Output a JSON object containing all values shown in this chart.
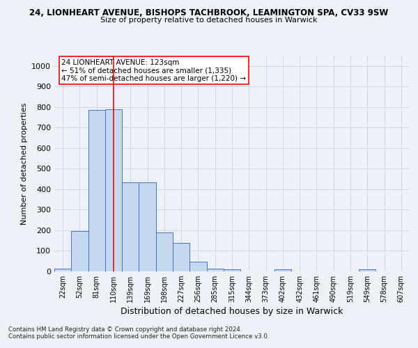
{
  "title_line1": "24, LIONHEART AVENUE, BISHOPS TACHBROOK, LEAMINGTON SPA, CV33 9SW",
  "title_line2": "Size of property relative to detached houses in Warwick",
  "xlabel": "Distribution of detached houses by size in Warwick",
  "ylabel": "Number of detached properties",
  "categories": [
    "22sqm",
    "52sqm",
    "81sqm",
    "110sqm",
    "139sqm",
    "169sqm",
    "198sqm",
    "227sqm",
    "256sqm",
    "285sqm",
    "315sqm",
    "344sqm",
    "373sqm",
    "402sqm",
    "432sqm",
    "461sqm",
    "490sqm",
    "519sqm",
    "549sqm",
    "578sqm",
    "607sqm"
  ],
  "values": [
    15,
    195,
    785,
    790,
    435,
    435,
    190,
    140,
    48,
    15,
    10,
    0,
    0,
    10,
    0,
    0,
    0,
    0,
    10,
    0,
    0
  ],
  "bar_color": "#c6d9f1",
  "bar_edge_color": "#4472c4",
  "grid_color": "#c8d8e8",
  "vline_x_index": 3,
  "vline_color": "red",
  "annotation_text": "24 LIONHEART AVENUE: 123sqm\n← 51% of detached houses are smaller (1,335)\n47% of semi-detached houses are larger (1,220) →",
  "annotation_box_color": "white",
  "annotation_box_edge_color": "red",
  "footnote1": "Contains HM Land Registry data © Crown copyright and database right 2024.",
  "footnote2": "Contains public sector information licensed under the Open Government Licence v3.0.",
  "ylim": [
    0,
    1050
  ],
  "yticks": [
    0,
    100,
    200,
    300,
    400,
    500,
    600,
    700,
    800,
    900,
    1000
  ],
  "background_color": "#eef2f8"
}
